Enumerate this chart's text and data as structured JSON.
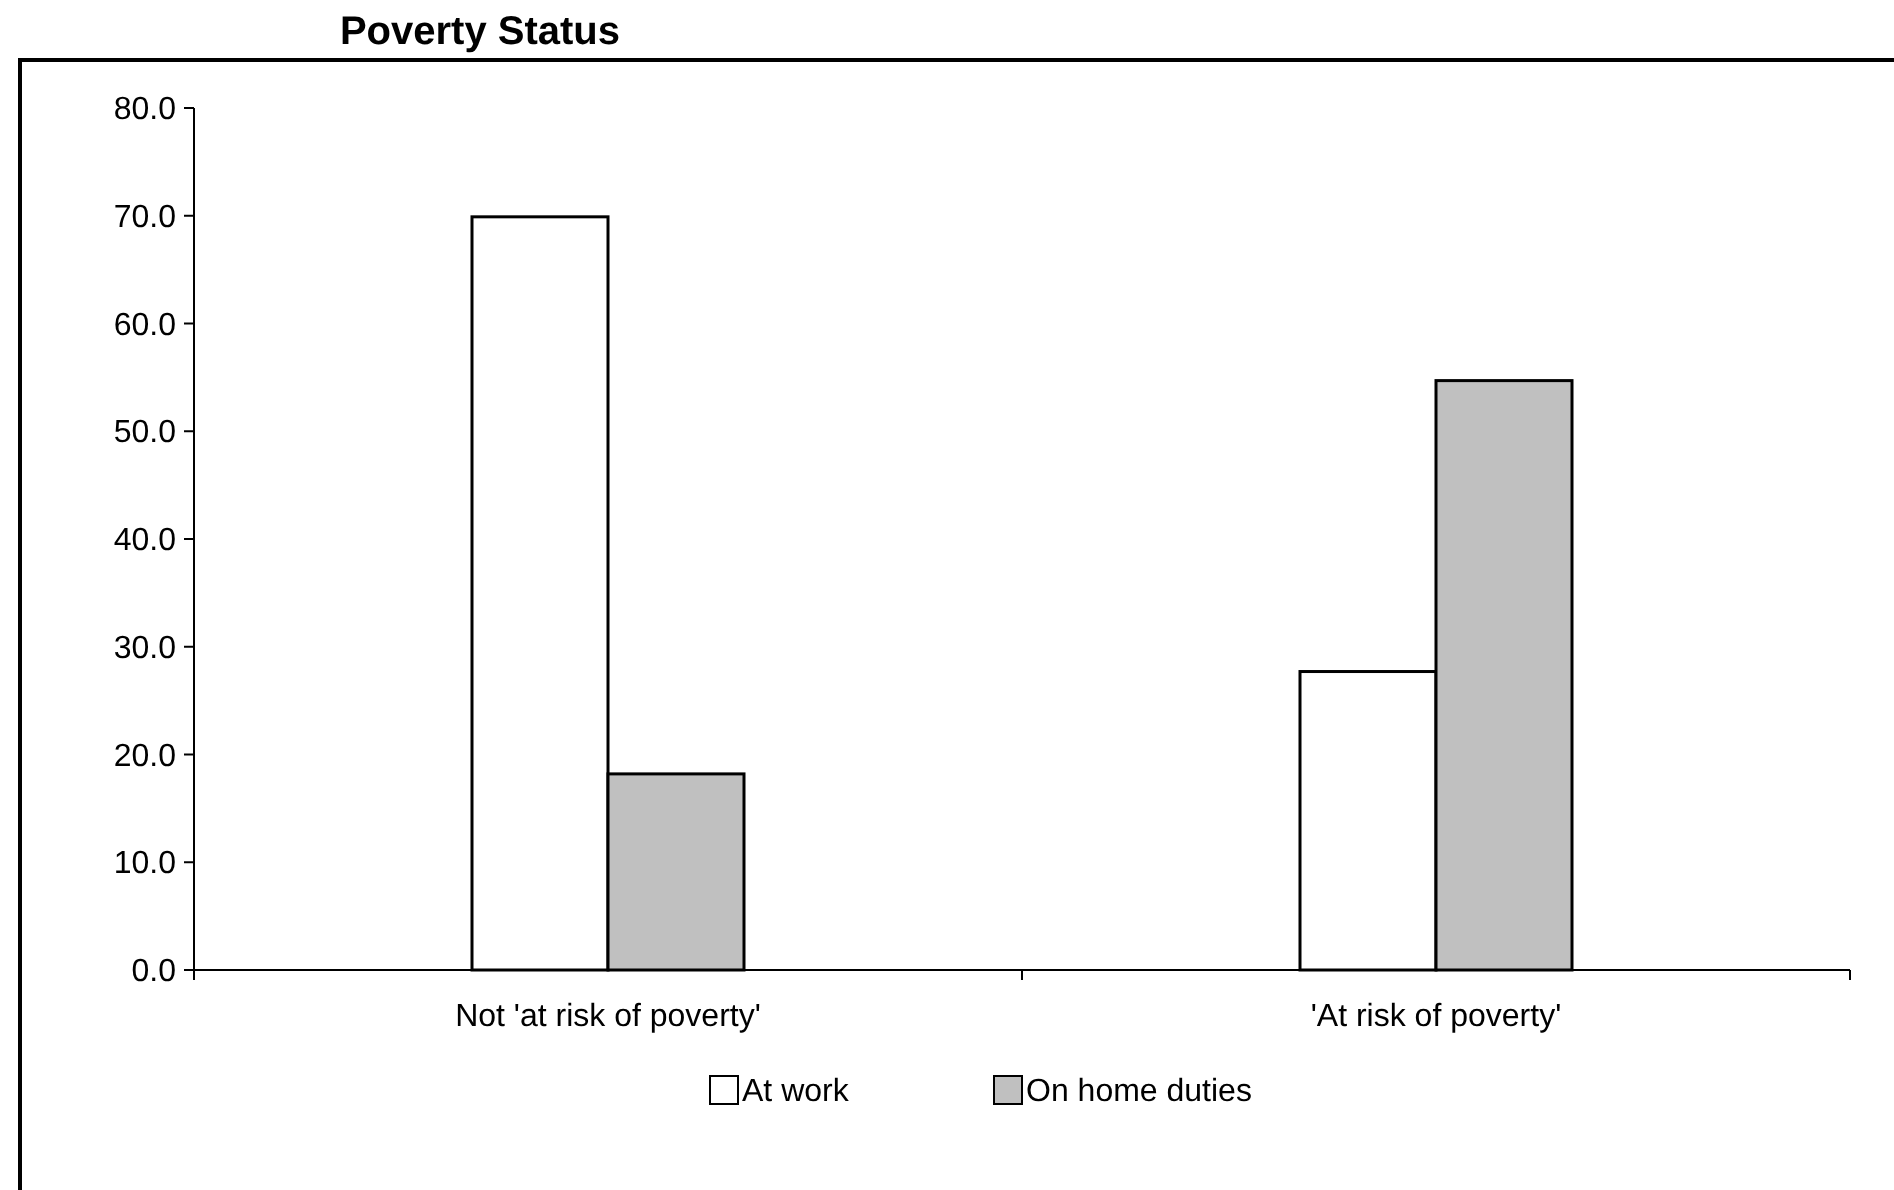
{
  "chart_data": {
    "type": "bar",
    "title": "Poverty Status",
    "categories": [
      "Not 'at risk of poverty'",
      "'At risk of poverty'"
    ],
    "series": [
      {
        "name": "At work",
        "color": "#ffffff",
        "values": [
          69.9,
          27.7
        ]
      },
      {
        "name": "On home duties",
        "color": "#c0c0c0",
        "values": [
          18.2,
          54.7
        ]
      }
    ],
    "ylim": [
      0,
      80
    ],
    "yticks": [
      {
        "value": 0,
        "label": "0.0"
      },
      {
        "value": 10,
        "label": "10.0"
      },
      {
        "value": 20,
        "label": "20.0"
      },
      {
        "value": 30,
        "label": "30.0"
      },
      {
        "value": 40,
        "label": "40.0"
      },
      {
        "value": 50,
        "label": "50.0"
      },
      {
        "value": 60,
        "label": "60.0"
      },
      {
        "value": 70,
        "label": "70.0"
      },
      {
        "value": 80,
        "label": "80.0"
      }
    ],
    "grid": false,
    "legend": "bottom"
  }
}
